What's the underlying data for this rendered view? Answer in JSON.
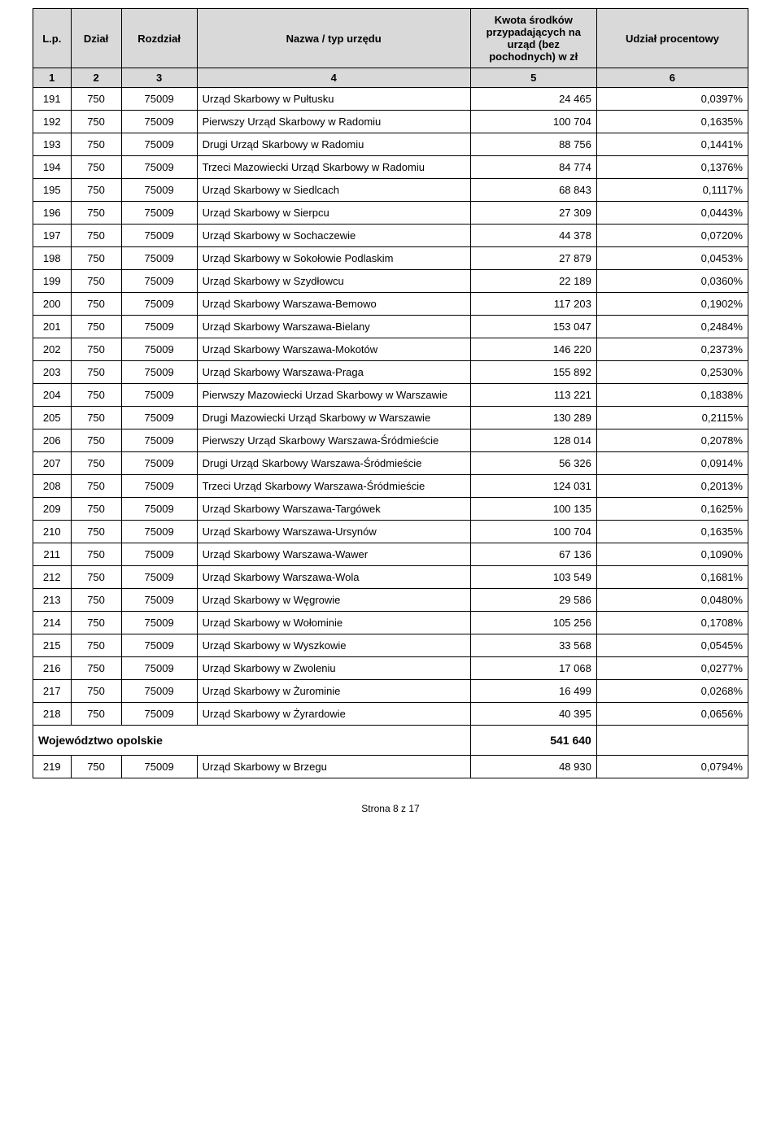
{
  "header": {
    "columns": [
      "L.p.",
      "Dział",
      "Rozdział",
      "Nazwa / typ urzędu",
      "Kwota środków przypadających na urząd (bez pochodnych) w zł",
      "Udział procentowy"
    ],
    "numbers": [
      "1",
      "2",
      "3",
      "4",
      "5",
      "6"
    ]
  },
  "rows": [
    {
      "lp": "191",
      "dzial": "750",
      "rozdz": "75009",
      "nazwa": "Urząd Skarbowy w Pułtusku",
      "kwota": "24 465",
      "udzial": "0,0397%"
    },
    {
      "lp": "192",
      "dzial": "750",
      "rozdz": "75009",
      "nazwa": "Pierwszy Urząd Skarbowy w Radomiu",
      "kwota": "100 704",
      "udzial": "0,1635%"
    },
    {
      "lp": "193",
      "dzial": "750",
      "rozdz": "75009",
      "nazwa": "Drugi Urząd Skarbowy w Radomiu",
      "kwota": "88 756",
      "udzial": "0,1441%"
    },
    {
      "lp": "194",
      "dzial": "750",
      "rozdz": "75009",
      "nazwa": "Trzeci Mazowiecki Urząd Skarbowy w Radomiu",
      "kwota": "84 774",
      "udzial": "0,1376%"
    },
    {
      "lp": "195",
      "dzial": "750",
      "rozdz": "75009",
      "nazwa": "Urząd Skarbowy w Siedlcach",
      "kwota": "68 843",
      "udzial": "0,1117%"
    },
    {
      "lp": "196",
      "dzial": "750",
      "rozdz": "75009",
      "nazwa": "Urząd Skarbowy w Sierpcu",
      "kwota": "27 309",
      "udzial": "0,0443%"
    },
    {
      "lp": "197",
      "dzial": "750",
      "rozdz": "75009",
      "nazwa": "Urząd Skarbowy w Sochaczewie",
      "kwota": "44 378",
      "udzial": "0,0720%"
    },
    {
      "lp": "198",
      "dzial": "750",
      "rozdz": "75009",
      "nazwa": "Urząd Skarbowy w Sokołowie Podlaskim",
      "kwota": "27 879",
      "udzial": "0,0453%"
    },
    {
      "lp": "199",
      "dzial": "750",
      "rozdz": "75009",
      "nazwa": "Urząd Skarbowy w Szydłowcu",
      "kwota": "22 189",
      "udzial": "0,0360%"
    },
    {
      "lp": "200",
      "dzial": "750",
      "rozdz": "75009",
      "nazwa": "Urząd Skarbowy Warszawa-Bemowo",
      "kwota": "117 203",
      "udzial": "0,1902%"
    },
    {
      "lp": "201",
      "dzial": "750",
      "rozdz": "75009",
      "nazwa": "Urząd Skarbowy Warszawa-Bielany",
      "kwota": "153 047",
      "udzial": "0,2484%"
    },
    {
      "lp": "202",
      "dzial": "750",
      "rozdz": "75009",
      "nazwa": "Urząd Skarbowy Warszawa-Mokotów",
      "kwota": "146 220",
      "udzial": "0,2373%"
    },
    {
      "lp": "203",
      "dzial": "750",
      "rozdz": "75009",
      "nazwa": "Urząd Skarbowy Warszawa-Praga",
      "kwota": "155 892",
      "udzial": "0,2530%"
    },
    {
      "lp": "204",
      "dzial": "750",
      "rozdz": "75009",
      "nazwa": "Pierwszy Mazowiecki Urzad Skarbowy w Warszawie",
      "kwota": "113 221",
      "udzial": "0,1838%"
    },
    {
      "lp": "205",
      "dzial": "750",
      "rozdz": "75009",
      "nazwa": "Drugi Mazowiecki Urząd Skarbowy w Warszawie",
      "kwota": "130 289",
      "udzial": "0,2115%"
    },
    {
      "lp": "206",
      "dzial": "750",
      "rozdz": "75009",
      "nazwa": "Pierwszy Urząd Skarbowy Warszawa-Śródmieście",
      "kwota": "128 014",
      "udzial": "0,2078%"
    },
    {
      "lp": "207",
      "dzial": "750",
      "rozdz": "75009",
      "nazwa": "Drugi Urząd Skarbowy Warszawa-Śródmieście",
      "kwota": "56 326",
      "udzial": "0,0914%"
    },
    {
      "lp": "208",
      "dzial": "750",
      "rozdz": "75009",
      "nazwa": "Trzeci Urząd Skarbowy Warszawa-Śródmieście",
      "kwota": "124 031",
      "udzial": "0,2013%"
    },
    {
      "lp": "209",
      "dzial": "750",
      "rozdz": "75009",
      "nazwa": "Urząd Skarbowy Warszawa-Targówek",
      "kwota": "100 135",
      "udzial": "0,1625%"
    },
    {
      "lp": "210",
      "dzial": "750",
      "rozdz": "75009",
      "nazwa": "Urząd Skarbowy Warszawa-Ursynów",
      "kwota": "100 704",
      "udzial": "0,1635%"
    },
    {
      "lp": "211",
      "dzial": "750",
      "rozdz": "75009",
      "nazwa": "Urząd Skarbowy Warszawa-Wawer",
      "kwota": "67 136",
      "udzial": "0,1090%"
    },
    {
      "lp": "212",
      "dzial": "750",
      "rozdz": "75009",
      "nazwa": "Urząd Skarbowy Warszawa-Wola",
      "kwota": "103 549",
      "udzial": "0,1681%"
    },
    {
      "lp": "213",
      "dzial": "750",
      "rozdz": "75009",
      "nazwa": "Urząd Skarbowy w Węgrowie",
      "kwota": "29 586",
      "udzial": "0,0480%"
    },
    {
      "lp": "214",
      "dzial": "750",
      "rozdz": "75009",
      "nazwa": "Urząd Skarbowy w Wołominie",
      "kwota": "105 256",
      "udzial": "0,1708%"
    },
    {
      "lp": "215",
      "dzial": "750",
      "rozdz": "75009",
      "nazwa": "Urząd Skarbowy w Wyszkowie",
      "kwota": "33 568",
      "udzial": "0,0545%"
    },
    {
      "lp": "216",
      "dzial": "750",
      "rozdz": "75009",
      "nazwa": "Urząd Skarbowy w Zwoleniu",
      "kwota": "17 068",
      "udzial": "0,0277%"
    },
    {
      "lp": "217",
      "dzial": "750",
      "rozdz": "75009",
      "nazwa": "Urząd Skarbowy w Żurominie",
      "kwota": "16 499",
      "udzial": "0,0268%"
    },
    {
      "lp": "218",
      "dzial": "750",
      "rozdz": "75009",
      "nazwa": "Urząd Skarbowy w Żyrardowie",
      "kwota": "40 395",
      "udzial": "0,0656%"
    }
  ],
  "region": {
    "label": "Województwo opolskie",
    "kwota": "541 640"
  },
  "rows_after": [
    {
      "lp": "219",
      "dzial": "750",
      "rozdz": "75009",
      "nazwa": "Urząd Skarbowy w Brzegu",
      "kwota": "48 930",
      "udzial": "0,0794%"
    }
  ],
  "footer": "Strona 8 z 17",
  "style": {
    "header_bg": "#d9d9d9",
    "border_color": "#000000",
    "font_family": "Arial",
    "base_font_size": 13
  }
}
